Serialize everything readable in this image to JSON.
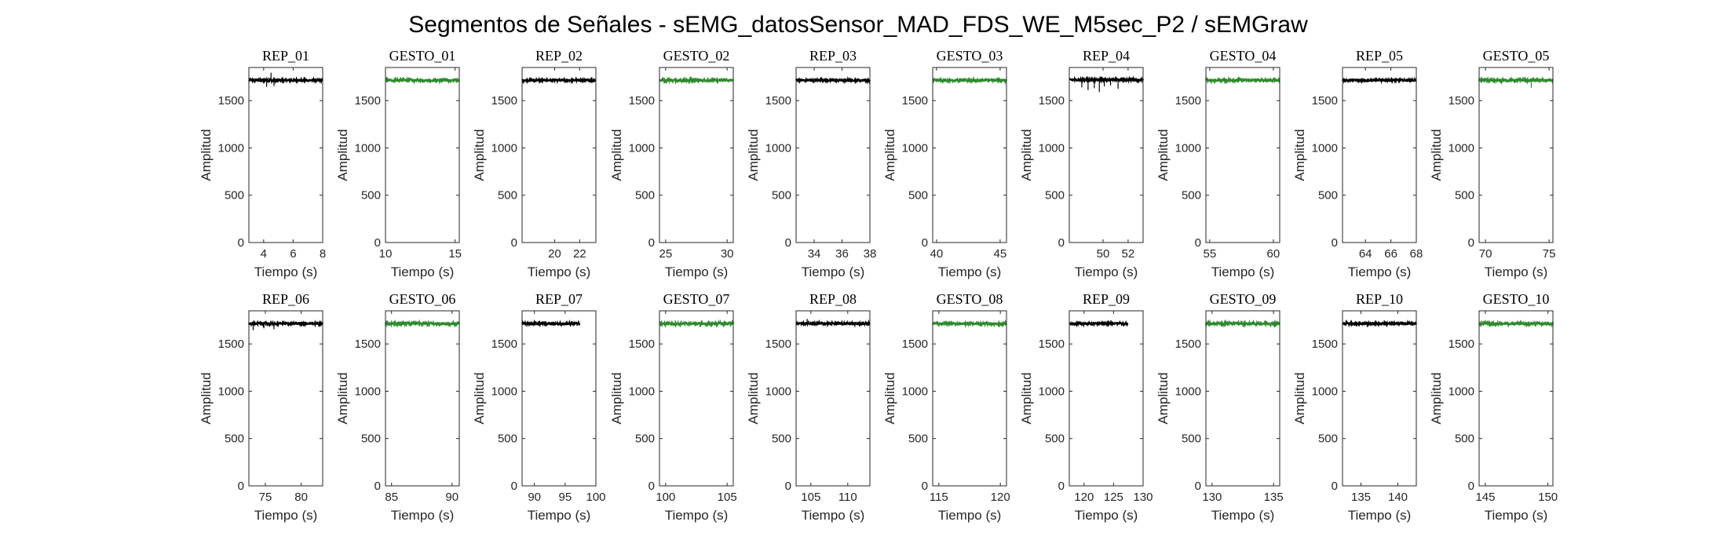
{
  "figure": {
    "title": "Segmentos de Señales - sEMG_datosSensor_MAD_FDS_WE_M5sec_P2 / sEMGraw"
  },
  "colors": {
    "rep": "#000000",
    "gesto": "#2e8b2e",
    "axis": "#262626"
  },
  "chart_data": [
    {
      "title": "REP_01",
      "type": "line",
      "xlabel": "Tiempo (s)",
      "ylabel": "Amplitud",
      "color": "black",
      "xlim": [
        3,
        8
      ],
      "ylim": [
        0,
        1850
      ],
      "xticks": [
        4,
        6,
        8
      ],
      "yticks": [
        0,
        500,
        1000,
        1500
      ],
      "x_range": [
        3,
        8
      ],
      "baseline": 1715,
      "noise": 20,
      "spikes": [
        [
          4.2,
          -70
        ],
        [
          4.5,
          80
        ],
        [
          4.7,
          -60
        ]
      ]
    },
    {
      "title": "GESTO_01",
      "type": "line",
      "xlabel": "Tiempo (s)",
      "ylabel": "Amplitud",
      "color": "green",
      "xlim": [
        10,
        15.3
      ],
      "ylim": [
        0,
        1850
      ],
      "xticks": [
        10,
        15
      ],
      "yticks": [
        0,
        500,
        1000,
        1500
      ],
      "x_range": [
        10,
        15.3
      ],
      "baseline": 1715,
      "noise": 25,
      "spikes": []
    },
    {
      "title": "REP_02",
      "type": "line",
      "xlabel": "Tiempo (s)",
      "ylabel": "Amplitud",
      "color": "black",
      "xlim": [
        17.4,
        23.3
      ],
      "ylim": [
        0,
        1850
      ],
      "xticks": [
        20,
        22
      ],
      "yticks": [
        0,
        500,
        1000,
        1500
      ],
      "x_range": [
        17.4,
        23.3
      ],
      "baseline": 1715,
      "noise": 18,
      "spikes": []
    },
    {
      "title": "GESTO_02",
      "type": "line",
      "xlabel": "Tiempo (s)",
      "ylabel": "Amplitud",
      "color": "green",
      "xlim": [
        24.5,
        30.5
      ],
      "ylim": [
        0,
        1850
      ],
      "xticks": [
        25,
        30
      ],
      "yticks": [
        0,
        500,
        1000,
        1500
      ],
      "x_range": [
        24.5,
        30.5
      ],
      "baseline": 1715,
      "noise": 25,
      "spikes": []
    },
    {
      "title": "REP_03",
      "type": "line",
      "xlabel": "Tiempo (s)",
      "ylabel": "Amplitud",
      "color": "black",
      "xlim": [
        32.7,
        38
      ],
      "ylim": [
        0,
        1850
      ],
      "xticks": [
        34,
        36,
        38
      ],
      "yticks": [
        0,
        500,
        1000,
        1500
      ],
      "x_range": [
        32.7,
        38
      ],
      "baseline": 1715,
      "noise": 18,
      "spikes": []
    },
    {
      "title": "GESTO_03",
      "type": "line",
      "xlabel": "Tiempo (s)",
      "ylabel": "Amplitud",
      "color": "green",
      "xlim": [
        39.7,
        45.5
      ],
      "ylim": [
        0,
        1850
      ],
      "xticks": [
        40,
        45
      ],
      "yticks": [
        0,
        500,
        1000,
        1500
      ],
      "x_range": [
        39.7,
        45.5
      ],
      "baseline": 1715,
      "noise": 25,
      "spikes": []
    },
    {
      "title": "REP_04",
      "type": "line",
      "xlabel": "Tiempo (s)",
      "ylabel": "Amplitud",
      "color": "black",
      "xlim": [
        47.3,
        53.2
      ],
      "ylim": [
        0,
        1850
      ],
      "xticks": [
        50,
        52
      ],
      "yticks": [
        0,
        500,
        1000,
        1500
      ],
      "x_range": [
        47.3,
        53.2
      ],
      "baseline": 1720,
      "noise": 20,
      "spikes": [
        [
          48.3,
          -80
        ],
        [
          48.8,
          -110
        ],
        [
          49.3,
          -90
        ],
        [
          49.7,
          -130
        ],
        [
          50.1,
          -70
        ],
        [
          50.6,
          -60
        ],
        [
          51.2,
          -95
        ]
      ]
    },
    {
      "title": "GESTO_04",
      "type": "line",
      "xlabel": "Tiempo (s)",
      "ylabel": "Amplitud",
      "color": "green",
      "xlim": [
        54.7,
        60.5
      ],
      "ylim": [
        0,
        1850
      ],
      "xticks": [
        55,
        60
      ],
      "yticks": [
        0,
        500,
        1000,
        1500
      ],
      "x_range": [
        54.7,
        60.5
      ],
      "baseline": 1715,
      "noise": 25,
      "spikes": []
    },
    {
      "title": "REP_05",
      "type": "line",
      "xlabel": "Tiempo (s)",
      "ylabel": "Amplitud",
      "color": "black",
      "xlim": [
        62.2,
        68
      ],
      "ylim": [
        0,
        1850
      ],
      "xticks": [
        64,
        66,
        68
      ],
      "yticks": [
        0,
        500,
        1000,
        1500
      ],
      "x_range": [
        62.2,
        68
      ],
      "baseline": 1715,
      "noise": 18,
      "spikes": []
    },
    {
      "title": "GESTO_05",
      "type": "line",
      "xlabel": "Tiempo (s)",
      "ylabel": "Amplitud",
      "color": "green",
      "xlim": [
        69.5,
        75.3
      ],
      "ylim": [
        0,
        1850
      ],
      "xticks": [
        70,
        75
      ],
      "yticks": [
        0,
        500,
        1000,
        1500
      ],
      "x_range": [
        69.5,
        75.3
      ],
      "baseline": 1715,
      "noise": 25,
      "spikes": [
        [
          73.6,
          -80
        ]
      ]
    },
    {
      "title": "REP_06",
      "type": "line",
      "xlabel": "Tiempo (s)",
      "ylabel": "Amplitud",
      "color": "black",
      "xlim": [
        72.7,
        83
      ],
      "ylim": [
        0,
        1850
      ],
      "xticks": [
        75,
        80
      ],
      "yticks": [
        0,
        500,
        1000,
        1500
      ],
      "x_range": [
        72.7,
        83
      ],
      "baseline": 1715,
      "noise": 20,
      "spikes": [
        [
          73.3,
          -70
        ],
        [
          74.8,
          -50
        ],
        [
          76.2,
          -60
        ]
      ]
    },
    {
      "title": "GESTO_06",
      "type": "line",
      "xlabel": "Tiempo (s)",
      "ylabel": "Amplitud",
      "color": "green",
      "xlim": [
        84.5,
        90.6
      ],
      "ylim": [
        0,
        1850
      ],
      "xticks": [
        85,
        90
      ],
      "yticks": [
        0,
        500,
        1000,
        1500
      ],
      "x_range": [
        84.5,
        90.6
      ],
      "baseline": 1715,
      "noise": 25,
      "spikes": []
    },
    {
      "title": "REP_07",
      "type": "line",
      "xlabel": "Tiempo (s)",
      "ylabel": "Amplitud",
      "color": "black",
      "xlim": [
        88,
        100
      ],
      "ylim": [
        0,
        1850
      ],
      "xticks": [
        90,
        95,
        100
      ],
      "yticks": [
        0,
        500,
        1000,
        1500
      ],
      "x_range": [
        88,
        97.4
      ],
      "baseline": 1715,
      "noise": 18,
      "spikes": []
    },
    {
      "title": "GESTO_07",
      "type": "line",
      "xlabel": "Tiempo (s)",
      "ylabel": "Amplitud",
      "color": "green",
      "xlim": [
        99.5,
        105.5
      ],
      "ylim": [
        0,
        1850
      ],
      "xticks": [
        100,
        105
      ],
      "yticks": [
        0,
        500,
        1000,
        1500
      ],
      "x_range": [
        99.5,
        105.5
      ],
      "baseline": 1715,
      "noise": 25,
      "spikes": []
    },
    {
      "title": "REP_08",
      "type": "line",
      "xlabel": "Tiempo (s)",
      "ylabel": "Amplitud",
      "color": "black",
      "xlim": [
        103,
        113
      ],
      "ylim": [
        0,
        1850
      ],
      "xticks": [
        105,
        110
      ],
      "yticks": [
        0,
        500,
        1000,
        1500
      ],
      "x_range": [
        103,
        113
      ],
      "baseline": 1715,
      "noise": 18,
      "spikes": [
        [
          104.5,
          50
        ]
      ]
    },
    {
      "title": "GESTO_08",
      "type": "line",
      "xlabel": "Tiempo (s)",
      "ylabel": "Amplitud",
      "color": "green",
      "xlim": [
        114.5,
        120.5
      ],
      "ylim": [
        0,
        1850
      ],
      "xticks": [
        115,
        120
      ],
      "yticks": [
        0,
        500,
        1000,
        1500
      ],
      "x_range": [
        114.5,
        120.5
      ],
      "baseline": 1715,
      "noise": 25,
      "spikes": []
    },
    {
      "title": "REP_09",
      "type": "line",
      "xlabel": "Tiempo (s)",
      "ylabel": "Amplitud",
      "color": "black",
      "xlim": [
        117.5,
        130
      ],
      "ylim": [
        0,
        1850
      ],
      "xticks": [
        120,
        125,
        130
      ],
      "yticks": [
        0,
        500,
        1000,
        1500
      ],
      "x_range": [
        117.5,
        127.4
      ],
      "baseline": 1715,
      "noise": 18,
      "spikes": []
    },
    {
      "title": "GESTO_09",
      "type": "line",
      "xlabel": "Tiempo (s)",
      "ylabel": "Amplitud",
      "color": "green",
      "xlim": [
        129.5,
        135.5
      ],
      "ylim": [
        0,
        1850
      ],
      "xticks": [
        130,
        135
      ],
      "yticks": [
        0,
        500,
        1000,
        1500
      ],
      "x_range": [
        129.5,
        135.5
      ],
      "baseline": 1715,
      "noise": 25,
      "spikes": []
    },
    {
      "title": "REP_10",
      "type": "line",
      "xlabel": "Tiempo (s)",
      "ylabel": "Amplitud",
      "color": "black",
      "xlim": [
        132.5,
        142.5
      ],
      "ylim": [
        0,
        1850
      ],
      "xticks": [
        135,
        140
      ],
      "yticks": [
        0,
        500,
        1000,
        1500
      ],
      "x_range": [
        132.5,
        142.5
      ],
      "baseline": 1715,
      "noise": 18,
      "spikes": []
    },
    {
      "title": "GESTO_10",
      "type": "line",
      "xlabel": "Tiempo (s)",
      "ylabel": "Amplitud",
      "color": "green",
      "xlim": [
        144.5,
        150.4
      ],
      "ylim": [
        0,
        1850
      ],
      "xticks": [
        145,
        150
      ],
      "yticks": [
        0,
        500,
        1000,
        1500
      ],
      "x_range": [
        144.5,
        150.4
      ],
      "baseline": 1715,
      "noise": 25,
      "spikes": []
    }
  ]
}
